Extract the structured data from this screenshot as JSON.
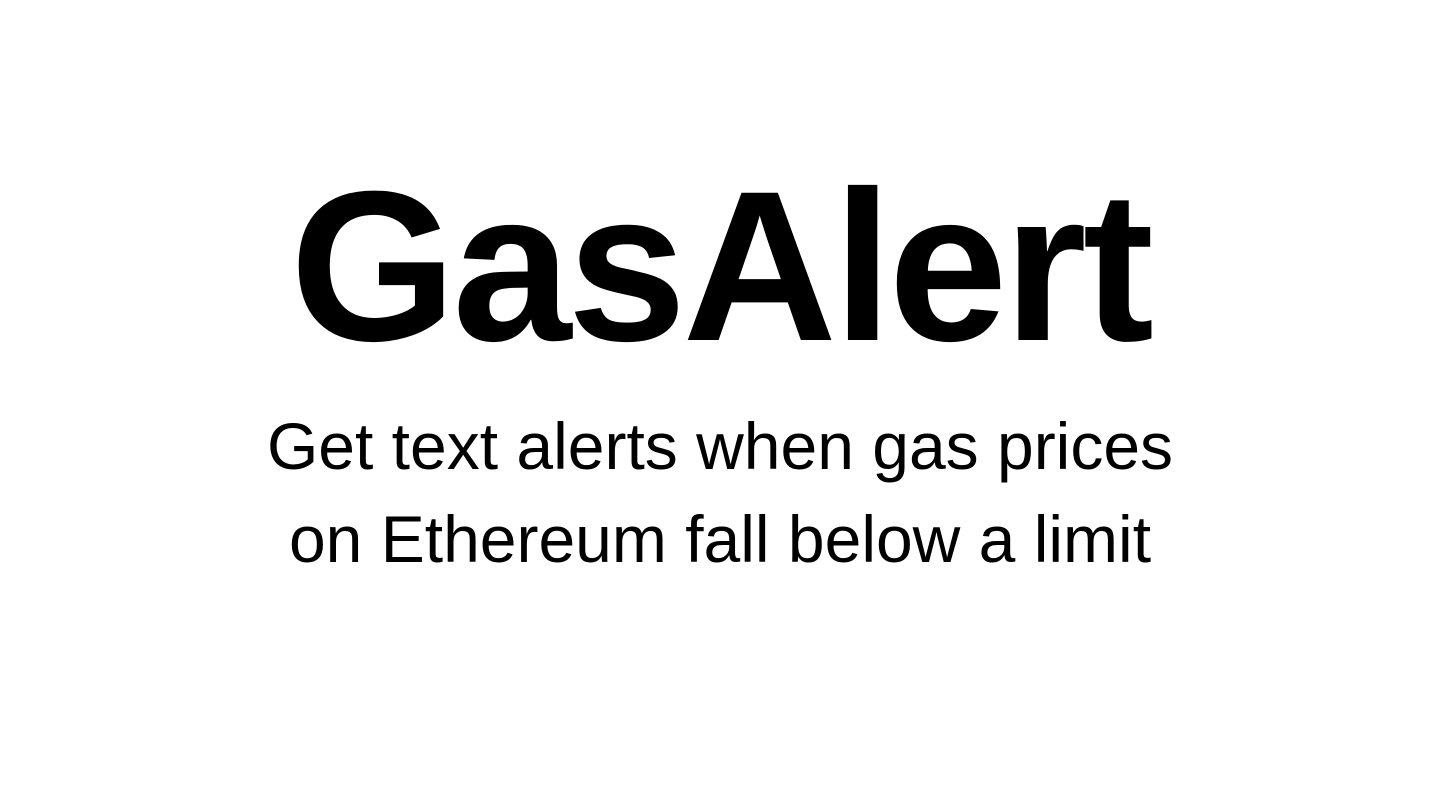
{
  "header": {
    "title": "GasAlert"
  },
  "tagline": {
    "line1": "Get text alerts when gas prices",
    "line2": "on Ethereum fall below a limit"
  },
  "colors": {
    "background": "#ffffff",
    "text": "#000000"
  }
}
